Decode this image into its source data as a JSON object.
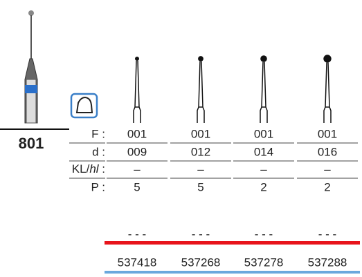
{
  "product": {
    "code": "801"
  },
  "table": {
    "row_labels": [
      "F :",
      "d :",
      {
        "prefix": "KL/",
        "italic": "hl",
        "suffix": " :"
      },
      "P :"
    ],
    "columns": [
      {
        "F": "001",
        "d": "009",
        "KL": "–",
        "P": "5",
        "status": "- - -",
        "order_no": "537418"
      },
      {
        "F": "001",
        "d": "012",
        "KL": "–",
        "P": "5",
        "status": "- - -",
        "order_no": "537268"
      },
      {
        "F": "001",
        "d": "014",
        "KL": "–",
        "P": "2",
        "status": "- - -",
        "order_no": "537278"
      },
      {
        "F": "001",
        "d": "016",
        "KL": "–",
        "P": "2",
        "status": "- - -",
        "order_no": "537288"
      }
    ]
  }
}
